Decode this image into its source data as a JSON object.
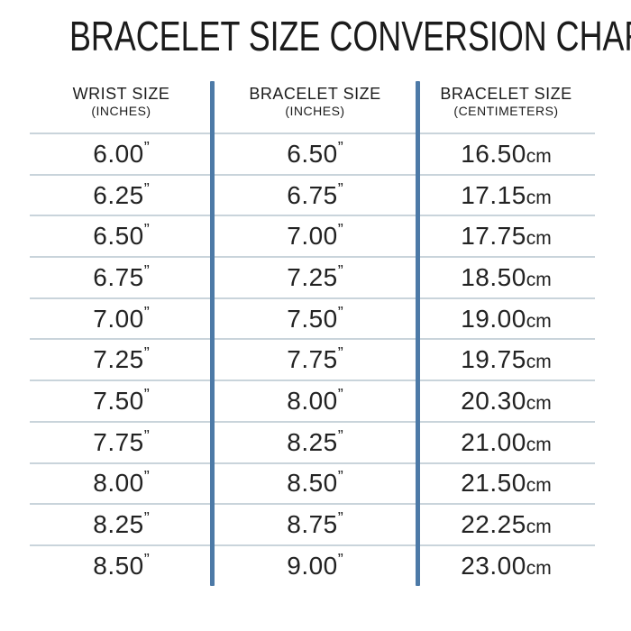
{
  "title": "BRACELET SIZE CONVERSION CHART",
  "chart_data": {
    "type": "table",
    "title": "BRACELET SIZE CONVERSION CHART",
    "columns": [
      {
        "label": "WRIST SIZE",
        "sublabel": "(INCHES)"
      },
      {
        "label": "BRACELET SIZE",
        "sublabel": "(INCHES)"
      },
      {
        "label": "BRACELET SIZE",
        "sublabel": "(CENTIMETERS)"
      }
    ],
    "units": {
      "inches": "”",
      "centimeters": "cm"
    },
    "rows": [
      {
        "wrist_in": "6.00",
        "bracelet_in": "6.50",
        "bracelet_cm": "16.50"
      },
      {
        "wrist_in": "6.25",
        "bracelet_in": "6.75",
        "bracelet_cm": "17.15"
      },
      {
        "wrist_in": "6.50",
        "bracelet_in": "7.00",
        "bracelet_cm": "17.75"
      },
      {
        "wrist_in": "6.75",
        "bracelet_in": "7.25",
        "bracelet_cm": "18.50"
      },
      {
        "wrist_in": "7.00",
        "bracelet_in": "7.50",
        "bracelet_cm": "19.00"
      },
      {
        "wrist_in": "7.25",
        "bracelet_in": "7.75",
        "bracelet_cm": "19.75"
      },
      {
        "wrist_in": "7.50",
        "bracelet_in": "8.00",
        "bracelet_cm": "20.30"
      },
      {
        "wrist_in": "7.75",
        "bracelet_in": "8.25",
        "bracelet_cm": "21.00"
      },
      {
        "wrist_in": "8.00",
        "bracelet_in": "8.50",
        "bracelet_cm": "21.50"
      },
      {
        "wrist_in": "8.25",
        "bracelet_in": "8.75",
        "bracelet_cm": "22.25"
      },
      {
        "wrist_in": "8.50",
        "bracelet_in": "9.00",
        "bracelet_cm": "23.00"
      }
    ]
  },
  "colors": {
    "divider_blue": "#4d7aa7",
    "row_line": "#c9d4db",
    "text": "#1f1f1f"
  }
}
